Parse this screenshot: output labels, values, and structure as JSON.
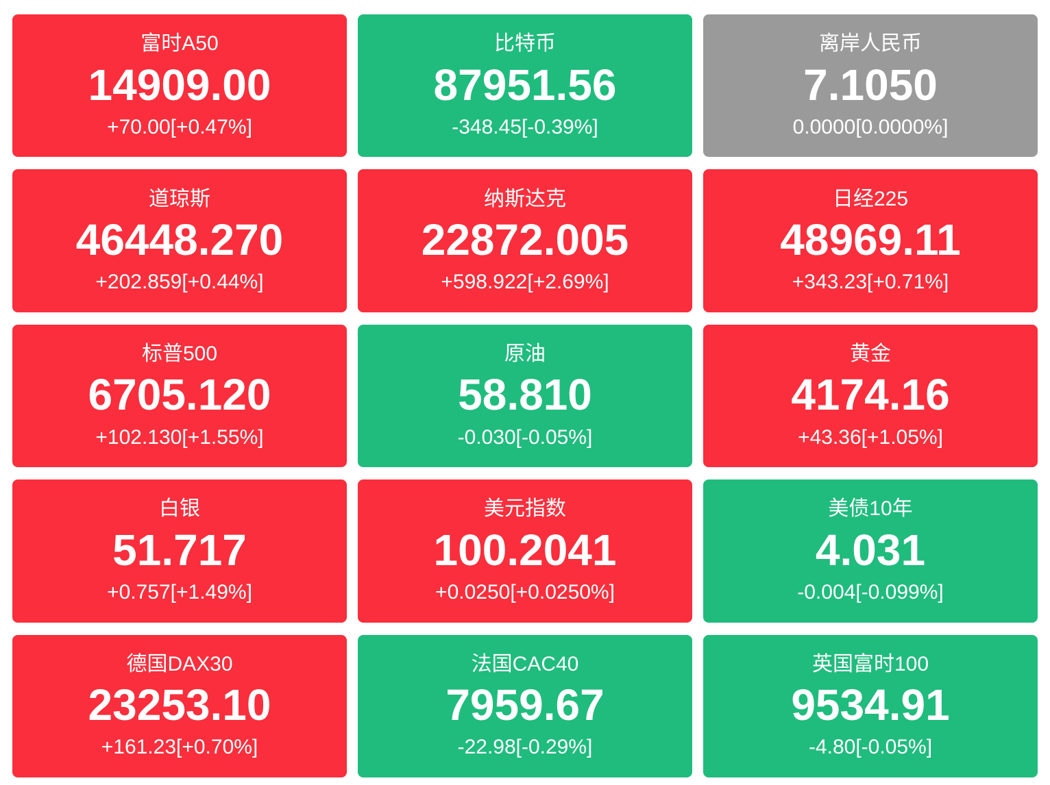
{
  "colors": {
    "up": "#FA2E3C",
    "down": "#1FBC7D",
    "flat": "#9A9A9A",
    "text": "#FFFFFF",
    "page_bg": "#FFFFFF"
  },
  "tiles": [
    {
      "name": "富时A50",
      "value": "14909.00",
      "change": "+70.00[+0.47%]",
      "direction": "up"
    },
    {
      "name": "比特币",
      "value": "87951.56",
      "change": "-348.45[-0.39%]",
      "direction": "down"
    },
    {
      "name": "离岸人民币",
      "value": "7.1050",
      "change": "0.0000[0.0000%]",
      "direction": "flat"
    },
    {
      "name": "道琼斯",
      "value": "46448.270",
      "change": "+202.859[+0.44%]",
      "direction": "up"
    },
    {
      "name": "纳斯达克",
      "value": "22872.005",
      "change": "+598.922[+2.69%]",
      "direction": "up"
    },
    {
      "name": "日经225",
      "value": "48969.11",
      "change": "+343.23[+0.71%]",
      "direction": "up"
    },
    {
      "name": "标普500",
      "value": "6705.120",
      "change": "+102.130[+1.55%]",
      "direction": "up"
    },
    {
      "name": "原油",
      "value": "58.810",
      "change": "-0.030[-0.05%]",
      "direction": "down"
    },
    {
      "name": "黄金",
      "value": "4174.16",
      "change": "+43.36[+1.05%]",
      "direction": "up"
    },
    {
      "name": "白银",
      "value": "51.717",
      "change": "+0.757[+1.49%]",
      "direction": "up"
    },
    {
      "name": "美元指数",
      "value": "100.2041",
      "change": "+0.0250[+0.0250%]",
      "direction": "up"
    },
    {
      "name": "美债10年",
      "value": "4.031",
      "change": "-0.004[-0.099%]",
      "direction": "down"
    },
    {
      "name": "德国DAX30",
      "value": "23253.10",
      "change": "+161.23[+0.70%]",
      "direction": "up"
    },
    {
      "name": "法国CAC40",
      "value": "7959.67",
      "change": "-22.98[-0.29%]",
      "direction": "down"
    },
    {
      "name": "英国富时100",
      "value": "9534.91",
      "change": "-4.80[-0.05%]",
      "direction": "down"
    }
  ]
}
